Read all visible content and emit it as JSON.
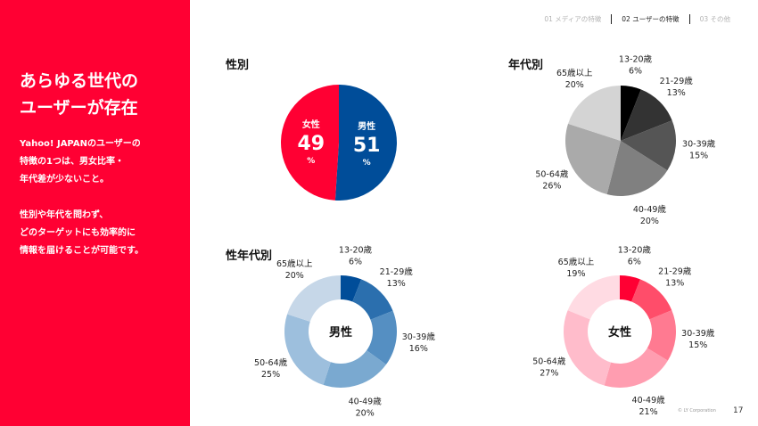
{
  "left": {
    "headline": "あらゆる世代の\nユーザーが存在",
    "desc1": "Yahoo! JAPANのユーザーの\n特徴の1つは、男女比率・\n年代差が少ないこと。",
    "desc2": "性別や年代を問わず、\nどのターゲットにも効率的に\n情報を届けることが可能です。"
  },
  "nav": [
    {
      "label": "01 メディアの特徴",
      "active": false
    },
    {
      "label": "02 ユーザーの特徴",
      "active": true
    },
    {
      "label": "03 その他",
      "active": false
    }
  ],
  "footer": {
    "copyright": "© LY Corporation",
    "page": "17"
  },
  "chart_data": [
    {
      "type": "pie",
      "title": "性別",
      "unit": "%",
      "categories": [
        "男性",
        "女性"
      ],
      "values": [
        51,
        49
      ],
      "colors": [
        "#004d99",
        "#ff0033"
      ]
    },
    {
      "type": "pie",
      "title": "年代別",
      "categories": [
        "13-20歳",
        "21-29歳",
        "30-39歳",
        "40-49歳",
        "50-64歳",
        "65歳以上"
      ],
      "values": [
        6,
        13,
        15,
        20,
        26,
        20
      ],
      "colors": [
        "#000000",
        "#333333",
        "#555555",
        "#808080",
        "#aaaaaa",
        "#d4d4d4"
      ]
    },
    {
      "type": "pie",
      "title": "性年代別",
      "center_label": "男性",
      "categories": [
        "13-20歳",
        "21-29歳",
        "30-39歳",
        "40-49歳",
        "50-64歳",
        "65歳以上"
      ],
      "values": [
        6,
        13,
        16,
        20,
        25,
        20
      ],
      "colors": [
        "#004d99",
        "#2b6fae",
        "#558fc2",
        "#7aa9d0",
        "#9dbfdd",
        "#c6d7e8"
      ]
    },
    {
      "type": "pie",
      "title": "",
      "center_label": "女性",
      "categories": [
        "13-20歳",
        "21-29歳",
        "30-39歳",
        "40-49歳",
        "50-64歳",
        "65歳以上"
      ],
      "values": [
        6,
        13,
        15,
        21,
        27,
        19
      ],
      "colors": [
        "#ff0033",
        "#ff4d6a",
        "#ff7a91",
        "#ff9db0",
        "#ffbccb",
        "#ffdbe3"
      ]
    }
  ]
}
